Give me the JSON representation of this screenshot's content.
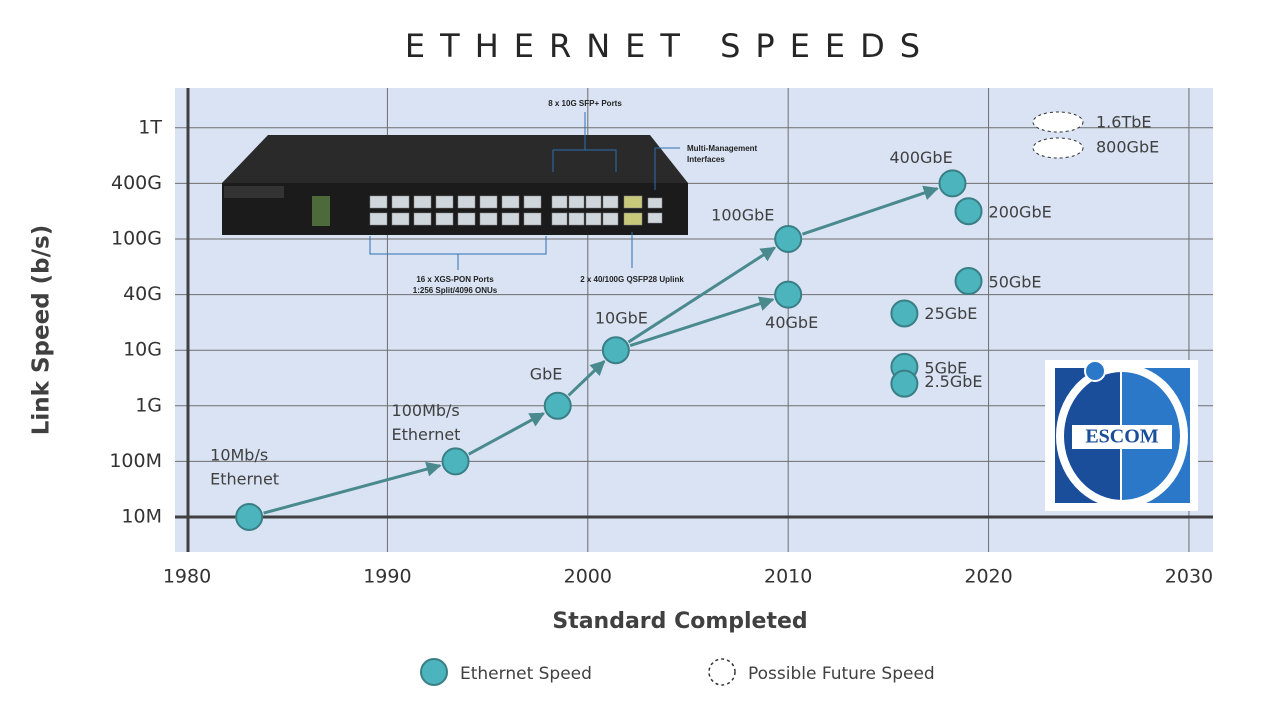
{
  "chart_data": {
    "type": "scatter",
    "title": "ETHERNET SPEEDS",
    "x_label": "Standard Completed",
    "y_label": "Link Speed (b/s)",
    "log_y": true,
    "grid": true,
    "xlim": [
      1979.4,
      2031.2
    ],
    "xticks": [
      1980,
      1990,
      2000,
      2010,
      2020,
      2030
    ],
    "yticks": [
      {
        "value": 10000000,
        "label": "10M"
      },
      {
        "value": 100000000,
        "label": "100M"
      },
      {
        "value": 1000000000,
        "label": "1G"
      },
      {
        "value": 10000000000,
        "label": "10G"
      },
      {
        "value": 40000000000,
        "label": "40G"
      },
      {
        "value": 100000000000,
        "label": "100G"
      },
      {
        "value": 400000000000,
        "label": "400G"
      },
      {
        "value": 1000000000000,
        "label": "1T"
      }
    ],
    "series": [
      {
        "name": "Ethernet Speed",
        "color": "#4bb4bd",
        "x": [
          1983.1,
          1993.4,
          1998.5,
          2001.4,
          2010,
          2010,
          2018.2,
          2019,
          2019,
          2015.8,
          2015.8,
          2015.8
        ],
        "values": [
          10000000,
          100000000,
          1000000000,
          10000000000,
          40000000000,
          100000000000,
          400000000000,
          200000000000,
          50000000000,
          25000000000,
          5000000000,
          2500000000
        ],
        "point_labels": [
          [
            "10Mb/s",
            "Ethernet"
          ],
          [
            "100Mb/s",
            "Ethernet"
          ],
          [
            "GbE"
          ],
          [
            "10GbE"
          ],
          [
            "40GbE"
          ],
          [
            "100GbE"
          ],
          [
            "400GbE"
          ],
          [
            "200GbE"
          ],
          [
            "50GbE"
          ],
          [
            "25GbE"
          ],
          [
            "5GbE"
          ],
          [
            "2.5GbE"
          ]
        ]
      }
    ],
    "future_speeds": [
      "1.6TbE",
      "800GbE"
    ],
    "future_legend": "Possible Future Speed"
  },
  "image_annotations": {
    "sfp": "8 x 10G SFP+ Ports",
    "management": [
      "Multi-Management",
      "Interfaces"
    ],
    "pon": [
      "16 x XGS-PON Ports",
      "1:256 Split/4096 ONUs"
    ],
    "uplink": "2 x 40/100G QSFP28 Uplink"
  },
  "logo": {
    "text": "ESCOM"
  }
}
